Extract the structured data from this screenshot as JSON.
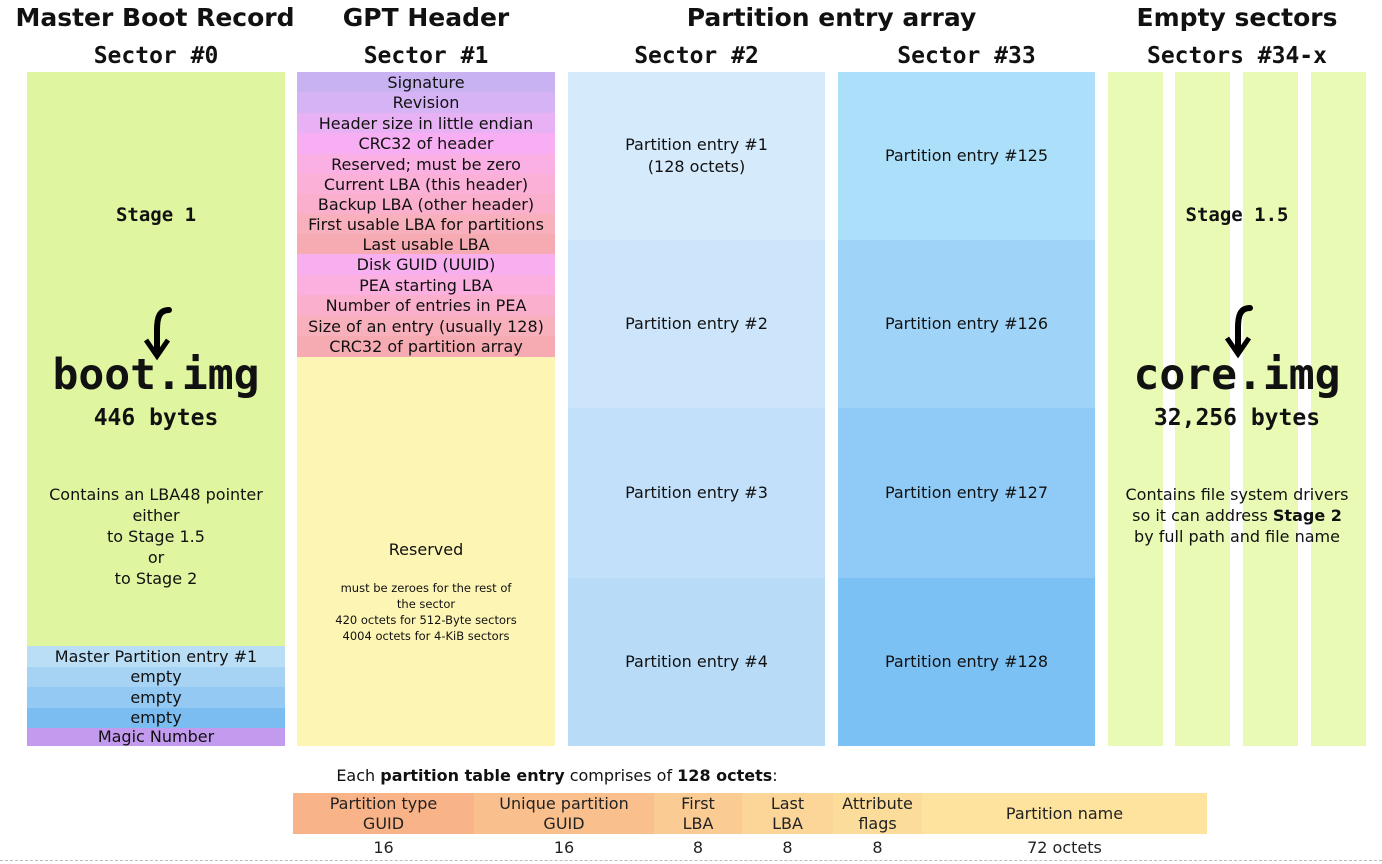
{
  "headers": {
    "mbr": {
      "title": "Master Boot Record",
      "sector": "Sector #0"
    },
    "gpt": {
      "title": "GPT Header",
      "sector": "Sector #1"
    },
    "pea": {
      "title": "Partition entry array",
      "sector2": "Sector #2",
      "sector33": "Sector #33"
    },
    "empty": {
      "title": "Empty sectors",
      "sector": "Sectors #34-x"
    }
  },
  "mbr": {
    "stage": "Stage 1",
    "image": "boot.img",
    "size": "446 bytes",
    "desc": [
      "Contains an LBA48 pointer",
      "either",
      "to Stage 1.5",
      "or",
      "to Stage 2"
    ],
    "entries": [
      "Master Partition entry #1",
      "empty",
      "empty",
      "empty"
    ],
    "magic": "Magic Number"
  },
  "gpt": {
    "fields": [
      "Signature",
      "Revision",
      "Header size in little endian",
      "CRC32 of header",
      "Reserved; must be zero",
      "Current LBA (this header)",
      "Backup LBA (other header)",
      "First usable LBA for partitions",
      "Last usable LBA",
      "Disk GUID (UUID)",
      "PEA starting LBA",
      "Number of entries in PEA",
      "Size of an entry (usually 128)",
      "CRC32 of partition array"
    ],
    "reserved_title": "Reserved",
    "reserved_note": [
      "must be zeroes for the rest of",
      "the sector",
      "420 octets for 512-Byte sectors",
      "4004 octets for 4-KiB sectors"
    ]
  },
  "pea": {
    "sector2": {
      "entry1": "Partition entry #1",
      "entry1_size": "(128 octets)",
      "entry2": "Partition entry #2",
      "entry3": "Partition entry #3",
      "entry4": "Partition entry #4"
    },
    "sector33": {
      "entry1": "Partition entry #125",
      "entry2": "Partition entry #126",
      "entry3": "Partition entry #127",
      "entry4": "Partition entry #128"
    }
  },
  "empty": {
    "stage": "Stage 1.5",
    "image": "core.img",
    "size": "32,256 bytes",
    "desc1": "Contains file system drivers",
    "desc2_pre": "so it can address ",
    "desc2_bold": "Stage 2",
    "desc3": "by full path and file name"
  },
  "entry_format": {
    "caption_pre": "Each ",
    "caption_bold1": "partition table entry",
    "caption_mid": " comprises of ",
    "caption_bold2": "128 octets",
    "caption_post": ":",
    "fields": [
      {
        "label1": "Partition type",
        "label2": "GUID",
        "size": "16"
      },
      {
        "label1": "Unique partition",
        "label2": "GUID",
        "size": "16"
      },
      {
        "label1": "First",
        "label2": "LBA",
        "size": "8"
      },
      {
        "label1": "Last",
        "label2": "LBA",
        "size": "8"
      },
      {
        "label1": "Attribute",
        "label2": "flags",
        "size": "8"
      },
      {
        "label1": "Partition name",
        "label2": "",
        "size": "72 octets"
      }
    ]
  },
  "colors": {
    "mbr_bg": "#e0f5a0",
    "empty_strip": "#e8fab4",
    "gpt_reserved": "#fdf5b4",
    "pea_sector2": "#cfe7fb",
    "pea_sector33": "#8fcaf6",
    "magic": "#c39bee"
  }
}
